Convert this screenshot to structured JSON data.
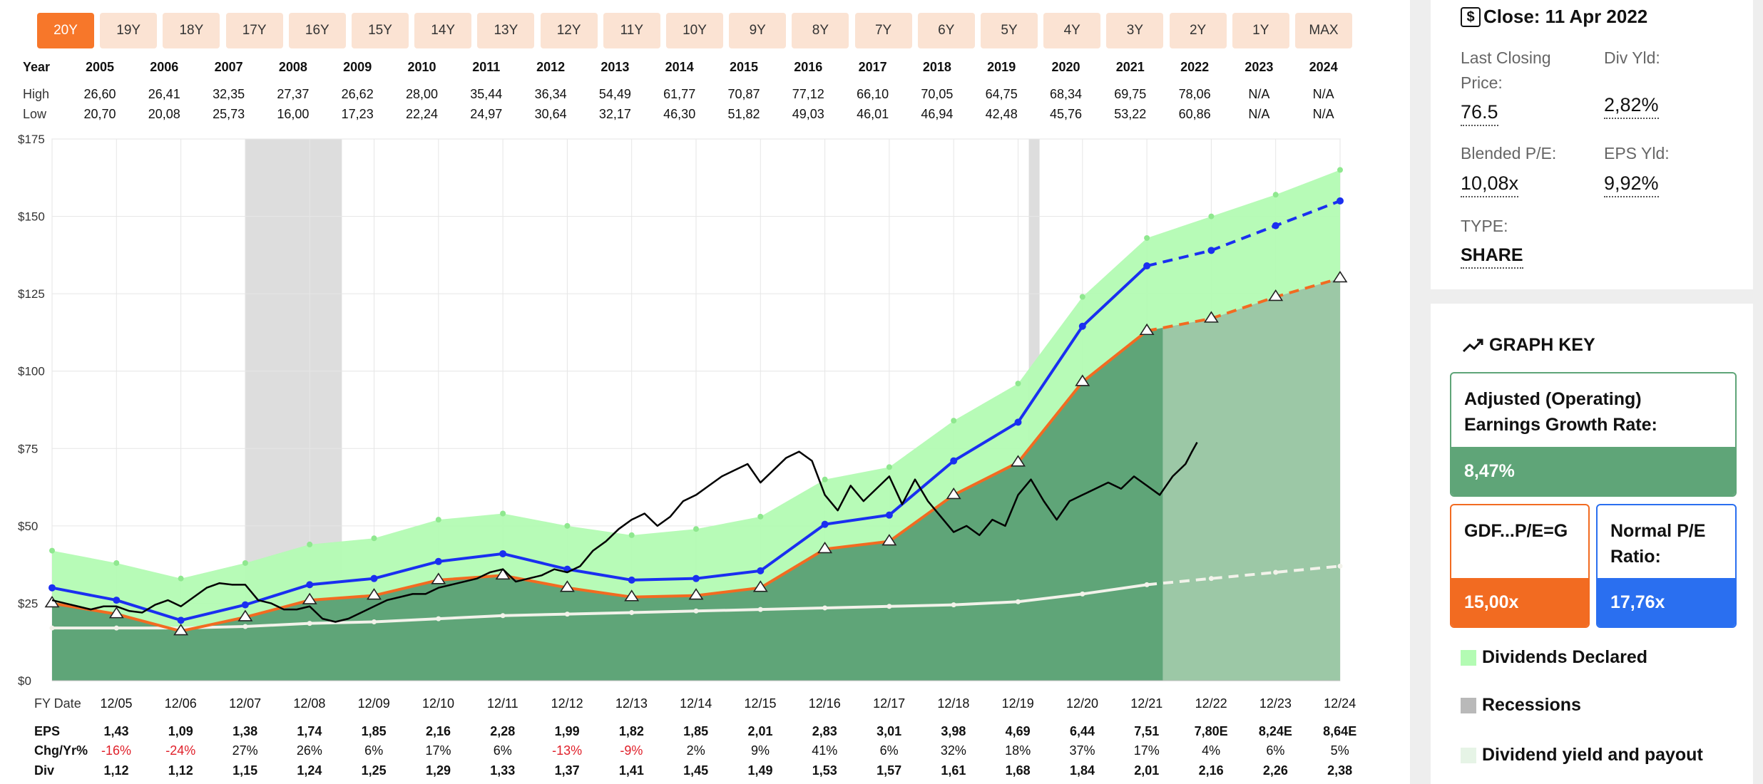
{
  "periods": [
    {
      "label": "20Y",
      "active": true
    },
    {
      "label": "19Y"
    },
    {
      "label": "18Y"
    },
    {
      "label": "17Y"
    },
    {
      "label": "16Y"
    },
    {
      "label": "15Y"
    },
    {
      "label": "14Y"
    },
    {
      "label": "13Y"
    },
    {
      "label": "12Y"
    },
    {
      "label": "11Y"
    },
    {
      "label": "10Y"
    },
    {
      "label": "9Y"
    },
    {
      "label": "8Y"
    },
    {
      "label": "7Y"
    },
    {
      "label": "6Y"
    },
    {
      "label": "5Y"
    },
    {
      "label": "4Y"
    },
    {
      "label": "3Y"
    },
    {
      "label": "2Y"
    },
    {
      "label": "1Y"
    },
    {
      "label": "MAX"
    }
  ],
  "top_table": {
    "year_label": "Year",
    "high_label": "High",
    "low_label": "Low",
    "years": [
      "2005",
      "2006",
      "2007",
      "2008",
      "2009",
      "2010",
      "2011",
      "2012",
      "2013",
      "2014",
      "2015",
      "2016",
      "2017",
      "2018",
      "2019",
      "2020",
      "2021",
      "2022",
      "2023",
      "2024"
    ],
    "high": [
      "26,60",
      "26,41",
      "32,35",
      "27,37",
      "26,62",
      "28,00",
      "35,44",
      "36,34",
      "54,49",
      "61,77",
      "70,87",
      "77,12",
      "66,10",
      "70,05",
      "64,75",
      "68,34",
      "69,75",
      "78,06",
      "N/A",
      "N/A"
    ],
    "low": [
      "20,70",
      "20,08",
      "25,73",
      "16,00",
      "17,23",
      "22,24",
      "24,97",
      "30,64",
      "32,17",
      "46,30",
      "51,82",
      "49,03",
      "46,01",
      "46,94",
      "42,48",
      "45,76",
      "53,22",
      "60,86",
      "N/A",
      "N/A"
    ]
  },
  "bottom_table": {
    "fy_label": "FY Date",
    "eps_label": "EPS",
    "chg_label": "Chg/Yr%",
    "div_label": "Div",
    "dates": [
      "12/05",
      "12/06",
      "12/07",
      "12/08",
      "12/09",
      "12/10",
      "12/11",
      "12/12",
      "12/13",
      "12/14",
      "12/15",
      "12/16",
      "12/17",
      "12/18",
      "12/19",
      "12/20",
      "12/21",
      "12/22",
      "12/23",
      "12/24"
    ],
    "eps": [
      "1,43",
      "1,09",
      "1,38",
      "1,74",
      "1,85",
      "2,16",
      "2,28",
      "1,99",
      "1,82",
      "1,85",
      "2,01",
      "2,83",
      "3,01",
      "3,98",
      "4,69",
      "6,44",
      "7,51",
      "7,80E",
      "8,24E",
      "8,64E"
    ],
    "chg": [
      "-16%",
      "-24%",
      "27%",
      "26%",
      "6%",
      "17%",
      "6%",
      "-13%",
      "-9%",
      "2%",
      "9%",
      "41%",
      "6%",
      "32%",
      "18%",
      "37%",
      "17%",
      "4%",
      "6%",
      "5%"
    ],
    "div": [
      "1,12",
      "1,12",
      "1,15",
      "1,24",
      "1,25",
      "1,29",
      "1,33",
      "1,37",
      "1,41",
      "1,45",
      "1,49",
      "1,53",
      "1,57",
      "1,61",
      "1,68",
      "1,84",
      "2,01",
      "2,16",
      "2,26",
      "2,38"
    ]
  },
  "colors": {
    "accent": "#f7772a",
    "normal_pe_line": "#1a2ff0",
    "gdf_line": "#f26b21",
    "dividend_area": "#b3fbb3",
    "earnings_area": "#5fa578",
    "projected_area": "#9cc8a6",
    "price_line": "#000000",
    "dividend_line": "#f2f2ea",
    "recession": "#dddddd",
    "negative": "#e0202a"
  },
  "sidebar": {
    "close_icon": "dollar-box-icon",
    "close_label": "Close: 11 Apr 2022",
    "last_closing_label": "Last Closing Price:",
    "last_closing_value": "76.5",
    "div_yld_label": "Div Yld:",
    "div_yld_value": "2,82%",
    "blended_pe_label": "Blended P/E:",
    "blended_pe_value": "10,08x",
    "eps_yld_label": "EPS Yld:",
    "eps_yld_value": "9,92%",
    "type_label": "TYPE:",
    "type_value": "SHARE",
    "graph_key_icon": "trend-line-icon",
    "graph_key_title": "GRAPH KEY",
    "growth_title": "Adjusted (Operating) Earnings Growth Rate:",
    "growth_value": "8,47%",
    "gdf_title": "GDF...P/E=G",
    "gdf_value": "15,00x",
    "normal_pe_title": "Normal P/E Ratio:",
    "normal_pe_value": "17,76x",
    "legend_dividends": "Dividends Declared",
    "legend_recessions": "Recessions",
    "legend_yield": "Dividend yield and payout"
  },
  "chart_data": {
    "type": "area",
    "x": [
      "12/04",
      "12/05",
      "12/06",
      "12/07",
      "12/08",
      "12/09",
      "12/10",
      "12/11",
      "12/12",
      "12/13",
      "12/14",
      "12/15",
      "12/16",
      "12/17",
      "12/18",
      "12/19",
      "12/20",
      "12/21",
      "12/22",
      "12/23",
      "12/24"
    ],
    "y_tick_labels": [
      "$0",
      "$25",
      "$50",
      "$75",
      "$100",
      "$125",
      "$150",
      "$175"
    ],
    "ylim": [
      0,
      175
    ],
    "actual_through": "03/22",
    "recessions": [
      [
        "12/07",
        "06/09"
      ],
      [
        "02/20",
        "04/20"
      ]
    ],
    "series": [
      {
        "key": "dividend_band",
        "values": [
          42,
          38,
          33,
          38,
          44,
          46,
          52,
          54,
          50,
          47,
          49,
          53,
          65,
          69,
          84,
          96,
          124,
          143,
          150,
          157,
          165
        ]
      },
      {
        "key": "normal_pe",
        "values": [
          30,
          26,
          19.5,
          24.5,
          31,
          33,
          38.5,
          41,
          36,
          32.5,
          33,
          35.5,
          50.5,
          53.5,
          71,
          83.5,
          114.5,
          134,
          139,
          147,
          155
        ]
      },
      {
        "key": "earnings_gdf",
        "values": [
          25,
          21.5,
          16,
          20.5,
          26,
          27.5,
          32.5,
          34,
          30,
          27,
          27.5,
          30,
          42.5,
          45,
          60,
          70.5,
          96.5,
          113,
          117,
          124,
          130
        ]
      },
      {
        "key": "dividend_line",
        "values": [
          17,
          17,
          17,
          17.5,
          18.5,
          19,
          20,
          21,
          21.5,
          22,
          22.5,
          23,
          23.5,
          24,
          24.5,
          25.5,
          28,
          31,
          33,
          35,
          37
        ]
      }
    ],
    "price": [
      [
        0,
        26
      ],
      [
        0.2,
        25
      ],
      [
        0.4,
        24
      ],
      [
        0.6,
        23
      ],
      [
        0.8,
        24
      ],
      [
        1.0,
        24
      ],
      [
        1.2,
        22.5
      ],
      [
        1.4,
        22
      ],
      [
        1.6,
        24.5
      ],
      [
        1.8,
        26
      ],
      [
        2.0,
        24
      ],
      [
        2.2,
        27
      ],
      [
        2.4,
        30
      ],
      [
        2.6,
        31.5
      ],
      [
        2.8,
        31
      ],
      [
        3.0,
        31
      ],
      [
        3.2,
        26
      ],
      [
        3.4,
        25
      ],
      [
        3.6,
        23
      ],
      [
        3.8,
        23
      ],
      [
        4.0,
        24
      ],
      [
        4.2,
        20
      ],
      [
        4.4,
        19
      ],
      [
        4.6,
        20
      ],
      [
        4.8,
        22
      ],
      [
        5.0,
        24
      ],
      [
        5.2,
        26
      ],
      [
        5.4,
        27
      ],
      [
        5.6,
        28
      ],
      [
        5.8,
        28
      ],
      [
        6.0,
        30
      ],
      [
        6.2,
        31
      ],
      [
        6.4,
        32
      ],
      [
        6.6,
        33
      ],
      [
        6.8,
        35
      ],
      [
        7.0,
        36
      ],
      [
        7.2,
        32
      ],
      [
        7.4,
        33
      ],
      [
        7.6,
        34
      ],
      [
        7.8,
        36
      ],
      [
        8.0,
        35
      ],
      [
        8.2,
        37
      ],
      [
        8.4,
        42
      ],
      [
        8.6,
        45
      ],
      [
        8.8,
        49
      ],
      [
        9.0,
        52
      ],
      [
        9.2,
        54
      ],
      [
        9.4,
        50
      ],
      [
        9.6,
        53
      ],
      [
        9.8,
        58
      ],
      [
        10.0,
        60
      ],
      [
        10.2,
        63
      ],
      [
        10.4,
        66
      ],
      [
        10.6,
        68
      ],
      [
        10.8,
        70
      ],
      [
        11.0,
        64
      ],
      [
        11.2,
        68
      ],
      [
        11.4,
        72
      ],
      [
        11.6,
        74
      ],
      [
        11.8,
        71
      ],
      [
        12.0,
        60
      ],
      [
        12.2,
        55
      ],
      [
        12.4,
        63
      ],
      [
        12.6,
        58
      ],
      [
        12.8,
        62
      ],
      [
        13.0,
        66
      ],
      [
        13.2,
        57
      ],
      [
        13.4,
        65
      ],
      [
        13.6,
        58
      ],
      [
        13.8,
        53
      ],
      [
        14.0,
        48
      ],
      [
        14.2,
        50
      ],
      [
        14.4,
        47
      ],
      [
        14.6,
        52
      ],
      [
        14.8,
        50
      ],
      [
        15.0,
        60
      ],
      [
        15.2,
        65
      ],
      [
        15.4,
        58
      ],
      [
        15.6,
        52
      ],
      [
        15.8,
        58
      ],
      [
        16.0,
        60
      ],
      [
        16.2,
        62
      ],
      [
        16.4,
        64
      ],
      [
        16.6,
        62
      ],
      [
        16.8,
        66
      ],
      [
        17.0,
        63
      ],
      [
        17.2,
        60
      ],
      [
        17.4,
        66
      ],
      [
        17.6,
        70
      ],
      [
        17.7,
        74
      ],
      [
        17.78,
        77
      ]
    ]
  }
}
